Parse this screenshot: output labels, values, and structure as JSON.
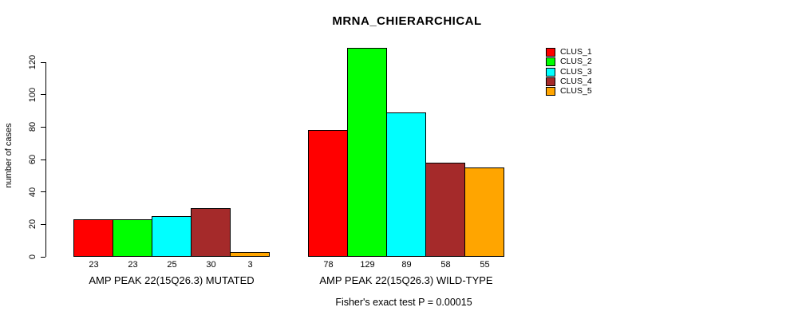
{
  "title": "MRNA_CHIERARCHICAL",
  "footer": {
    "note": "Fisher's exact test P = 0.00015"
  },
  "chart_data": {
    "type": "bar",
    "title": "MRNA_CHIERARCHICAL",
    "xlabel": "",
    "ylabel": "number of cases",
    "ylim": [
      0,
      130
    ],
    "yticks": [
      0,
      20,
      40,
      60,
      80,
      100,
      120
    ],
    "grid": false,
    "legend_position": "right",
    "categories": [
      "AMP PEAK 22(15Q26.3) MUTATED",
      "AMP PEAK 22(15Q26.3) WILD-TYPE"
    ],
    "groups": [
      {
        "label": "AMP PEAK 22(15Q26.3) MUTATED",
        "values": [
          23,
          23,
          25,
          30,
          3
        ]
      },
      {
        "label": "AMP PEAK 22(15Q26.3) WILD-TYPE",
        "values": [
          78,
          129,
          89,
          58,
          55
        ]
      }
    ],
    "series": [
      {
        "name": "CLUS_1",
        "color": "#ff0000",
        "values": [
          23,
          78
        ]
      },
      {
        "name": "CLUS_2",
        "color": "#00ff00",
        "values": [
          23,
          129
        ]
      },
      {
        "name": "CLUS_3",
        "color": "#00ffff",
        "values": [
          25,
          89
        ]
      },
      {
        "name": "CLUS_4",
        "color": "#a52a2a",
        "values": [
          30,
          58
        ]
      },
      {
        "name": "CLUS_5",
        "color": "#ffa500",
        "values": [
          3,
          55
        ]
      }
    ],
    "annotation": "Fisher's exact test P = 0.00015"
  }
}
